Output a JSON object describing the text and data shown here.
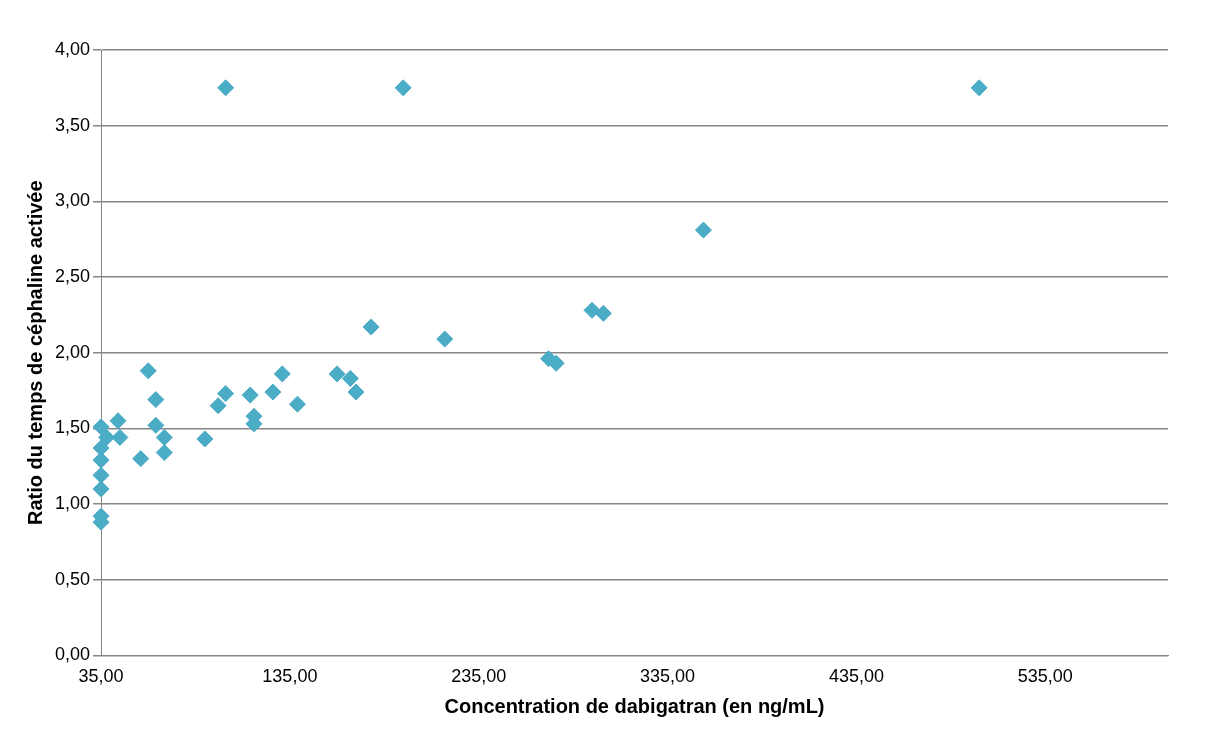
{
  "chart_data": {
    "type": "scatter",
    "xlabel": "Concentration de dabigatran (en ng/mL)",
    "ylabel": "Ratio du temps de céphaline activée",
    "x": [
      101,
      195,
      500,
      354,
      295,
      301,
      272,
      276,
      217,
      178,
      160,
      167,
      170,
      139,
      131,
      126,
      114,
      116,
      116,
      101,
      97,
      90,
      60,
      64,
      64,
      68.5,
      68.5,
      56,
      44,
      45,
      39,
      38,
      35,
      35,
      35,
      35,
      35,
      35,
      35
    ],
    "series": [
      {
        "color": "#4bacc6",
        "values": [
          3.75,
          3.75,
          3.75,
          2.81,
          2.28,
          2.26,
          1.96,
          1.93,
          2.09,
          2.17,
          1.86,
          1.83,
          1.74,
          1.66,
          1.86,
          1.74,
          1.72,
          1.58,
          1.53,
          1.73,
          1.65,
          1.43,
          1.88,
          1.69,
          1.52,
          1.44,
          1.34,
          1.3,
          1.55,
          1.44,
          null,
          1.44,
          1.51,
          1.37,
          1.29,
          1.19,
          1.1,
          0.92,
          0.88
        ]
      }
    ],
    "xlim": [
      35,
      600
    ],
    "xticks": [
      {
        "value": 35,
        "label": "35,00"
      },
      {
        "value": 135,
        "label": "135,00"
      },
      {
        "value": 235,
        "label": "235,00"
      },
      {
        "value": 335,
        "label": "335,00"
      },
      {
        "value": 435,
        "label": "435,00"
      },
      {
        "value": 535,
        "label": "535,00"
      }
    ],
    "ylim": [
      0,
      4
    ],
    "yticks": [
      {
        "value": 0,
        "label": "0,00"
      },
      {
        "value": 0.5,
        "label": "0,50"
      },
      {
        "value": 1,
        "label": "1,00"
      },
      {
        "value": 1.5,
        "label": "1,50"
      },
      {
        "value": 2,
        "label": "2,00"
      },
      {
        "value": 2.5,
        "label": "2,50"
      },
      {
        "value": 3,
        "label": "3,00"
      },
      {
        "value": 3.5,
        "label": "3,50"
      },
      {
        "value": 4,
        "label": "4,00"
      }
    ],
    "grid": "y",
    "marker": "diamond",
    "legend": false
  }
}
